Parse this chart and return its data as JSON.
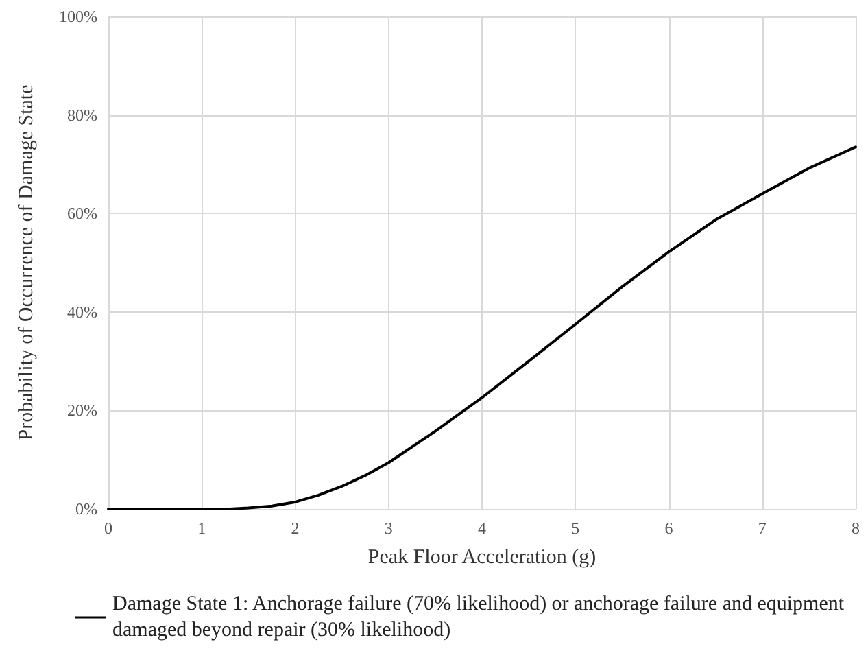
{
  "chart_data": {
    "type": "line",
    "xlabel": "Peak Floor Acceleration (g)",
    "ylabel": "Probability of Occurrence of Damage State",
    "x": [
      0,
      0.5,
      1,
      1.3,
      1.5,
      1.75,
      2,
      2.25,
      2.5,
      2.75,
      3,
      3.5,
      4,
      4.5,
      5,
      5.5,
      6,
      6.5,
      7,
      7.5,
      8
    ],
    "series": [
      {
        "name": "Damage State 1: Anchorage failure (70% likelihood) or anchorage failure and equipment damaged beyond repair (30% likelihood)",
        "color": "#000000",
        "values": [
          0,
          0,
          0,
          0,
          0.2,
          0.6,
          1.4,
          2.8,
          4.6,
          6.8,
          9.4,
          15.8,
          22.6,
          30,
          37.5,
          45.1,
          52.2,
          58.7,
          64,
          69.2,
          73.5
        ]
      }
    ],
    "xlim": [
      0,
      8
    ],
    "xticks": [
      0,
      1,
      2,
      3,
      4,
      5,
      6,
      7,
      8
    ],
    "ylim": [
      0,
      100
    ],
    "yticks": [
      {
        "value": 0,
        "label": "0%"
      },
      {
        "value": 20,
        "label": "20%"
      },
      {
        "value": 40,
        "label": "40%"
      },
      {
        "value": 60,
        "label": "60%"
      },
      {
        "value": 80,
        "label": "80%"
      },
      {
        "value": 100,
        "label": "100%"
      }
    ],
    "grid": true,
    "legend": "bottom left",
    "marker": "none",
    "line_style": "solid"
  }
}
